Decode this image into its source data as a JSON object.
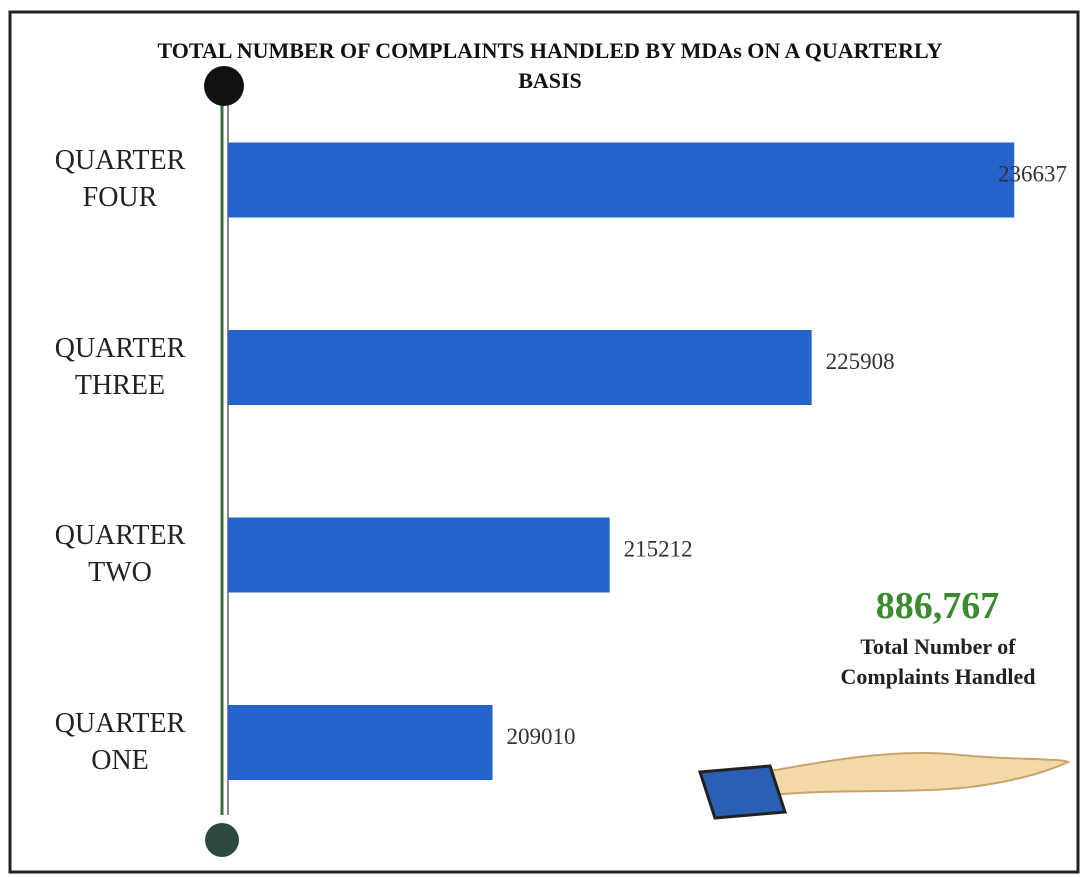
{
  "chart_data": {
    "type": "bar",
    "orientation": "horizontal",
    "title": "TOTAL NUMBER OF COMPLAINTS HANDLED BY MDAs ON A QUARTERLY BASIS",
    "categories": [
      "QUARTER FOUR",
      "QUARTER THREE",
      "QUARTER TWO",
      "QUARTER ONE"
    ],
    "values": [
      236637,
      225908,
      215212,
      209010
    ],
    "color": "#2463c9",
    "xlim": [
      195000,
      238000
    ],
    "annotations": [
      "886,767",
      "Total Number of Complaints Handled"
    ]
  }
}
